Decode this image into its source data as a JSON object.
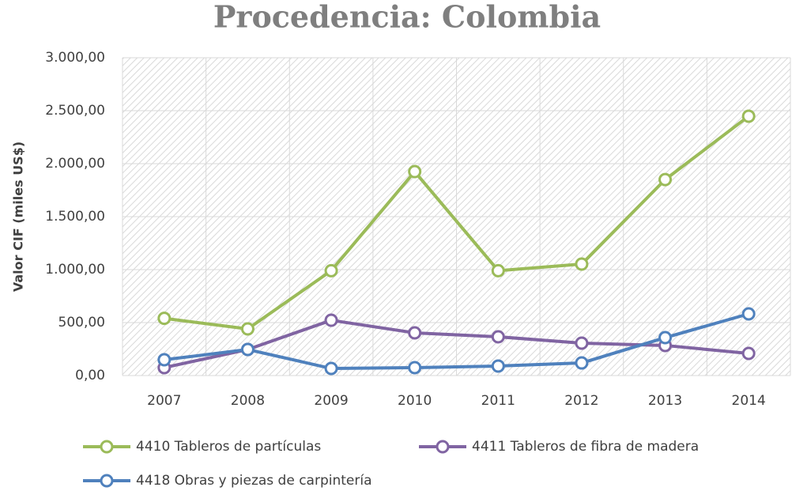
{
  "chart_data": {
    "type": "line",
    "title": "Procedencia: Colombia",
    "y_label": "Valor CIF (miles US$)",
    "categories": [
      "2007",
      "2008",
      "2009",
      "2010",
      "2011",
      "2012",
      "2013",
      "2014"
    ],
    "series": [
      {
        "name": "4410 Tableros de partículas",
        "color": "#9bbb59",
        "values": [
          540,
          440,
          990,
          1925,
          990,
          1052,
          1850,
          2448
        ]
      },
      {
        "name": "4411 Tableros de fibra de madera",
        "color": "#8064a2",
        "values": [
          75,
          246,
          522,
          403,
          366,
          306,
          284,
          209
        ]
      },
      {
        "name": "4418 Obras y piezas de carpintería",
        "color": "#4f81bd",
        "values": [
          149,
          246,
          67,
          75,
          90,
          119,
          358,
          582
        ]
      }
    ],
    "ylim": [
      0,
      3000
    ],
    "yticks": [
      {
        "value": 0,
        "label": "0,00"
      },
      {
        "value": 500,
        "label": "500,00"
      },
      {
        "value": 1000,
        "label": "1.000,00"
      },
      {
        "value": 1500,
        "label": "1.500,00"
      },
      {
        "value": 2000,
        "label": "2.000,00"
      },
      {
        "value": 2500,
        "label": "2.500,00"
      },
      {
        "value": 3000,
        "label": "3.000,00"
      }
    ],
    "grid": true
  }
}
